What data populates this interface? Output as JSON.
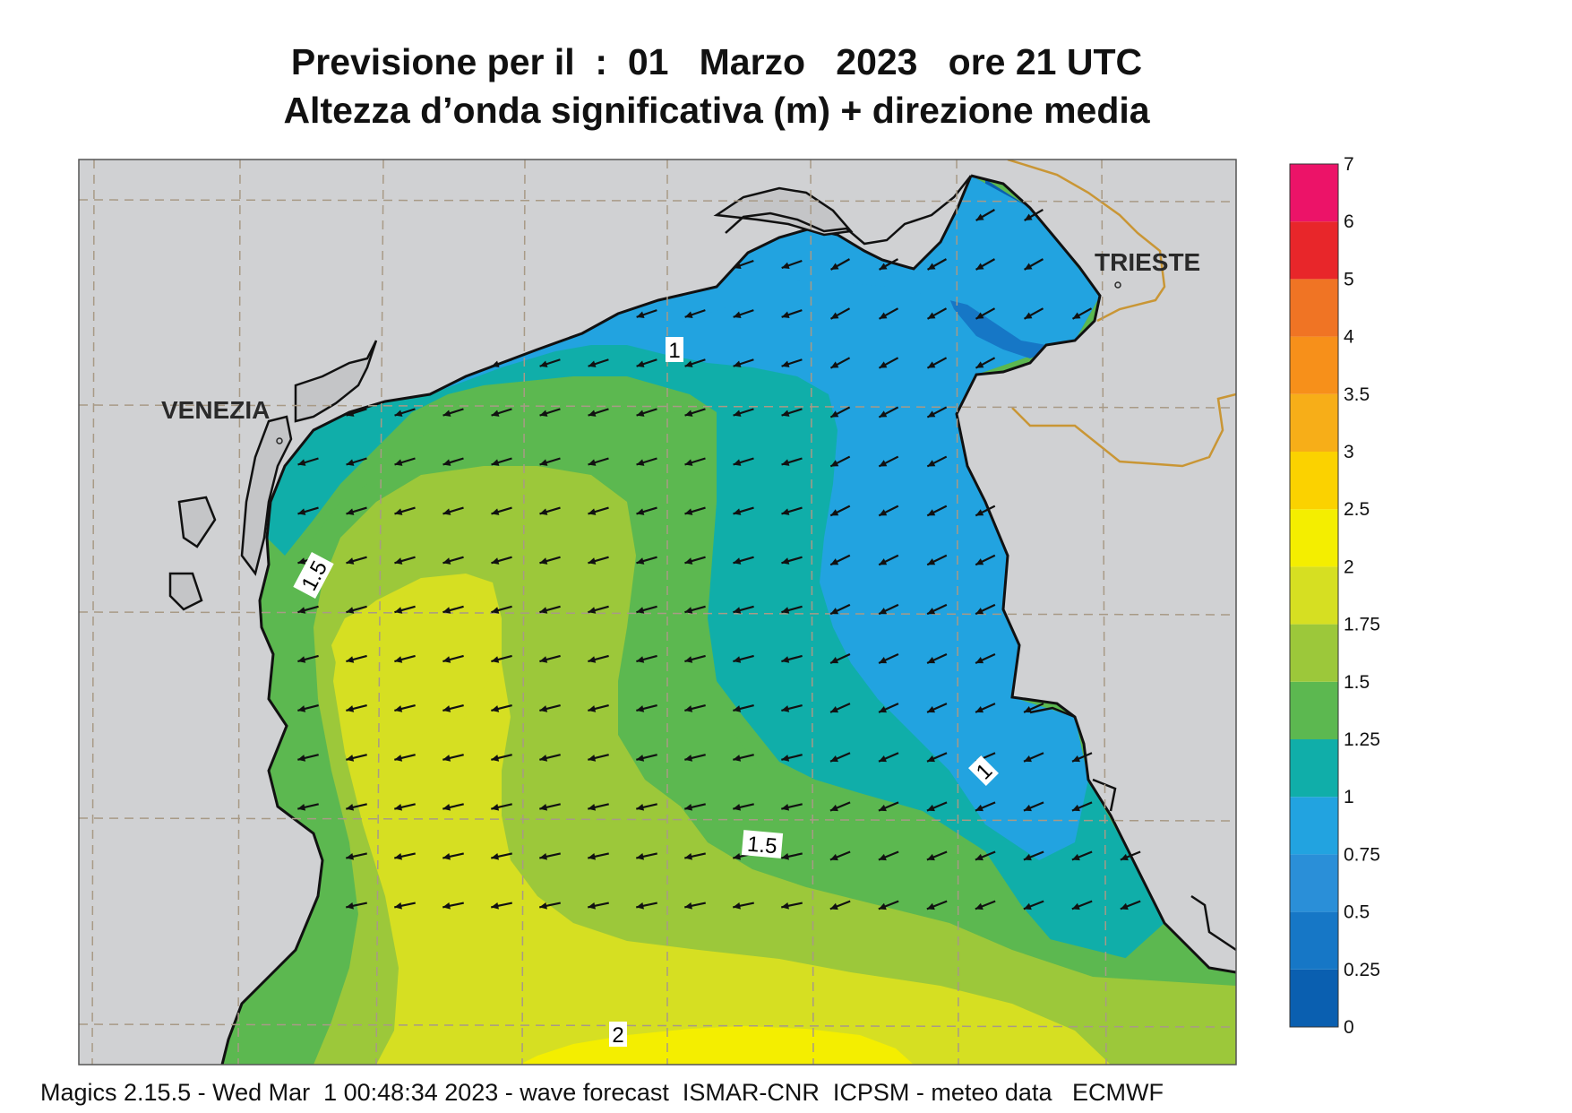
{
  "title_line1": "Previsione per il  :  01   Marzo   2023   ore 21 UTC",
  "title_line2": "Altezza d’onda significativa (m) + direzione media",
  "cities": [
    {
      "name": "VENEZIA"
    },
    {
      "name": "TRIESTE"
    }
  ],
  "contour_labels": [
    "1",
    "1.5",
    "1",
    "1.5",
    "2"
  ],
  "legend": {
    "levels": [
      "0",
      "0.25",
      "0.5",
      "0.75",
      "1",
      "1.25",
      "1.5",
      "1.75",
      "2",
      "2.5",
      "3",
      "3.5",
      "4",
      "5",
      "6",
      "7"
    ],
    "colors": [
      "#0a5fb0",
      "#1677c6",
      "#2a8fd8",
      "#22a3e0",
      "#10aea9",
      "#5cb850",
      "#9cc83a",
      "#d6df22",
      "#f4ee00",
      "#fbd200",
      "#f7ae18",
      "#f7901a",
      "#f07424",
      "#e8262a",
      "#ec1368"
    ]
  },
  "colors": {
    "land": "#d0d1d3",
    "grid": "#a89a86",
    "border": "#c99635",
    "arrow": "#111111"
  },
  "wave_direction": "towards south-west / west",
  "footer": "Magics 2.15.5 - Wed Mar  1 00:48:34 2023 - wave forecast  ISMAR-CNR  ICPSM - meteo data   ECMWF"
}
